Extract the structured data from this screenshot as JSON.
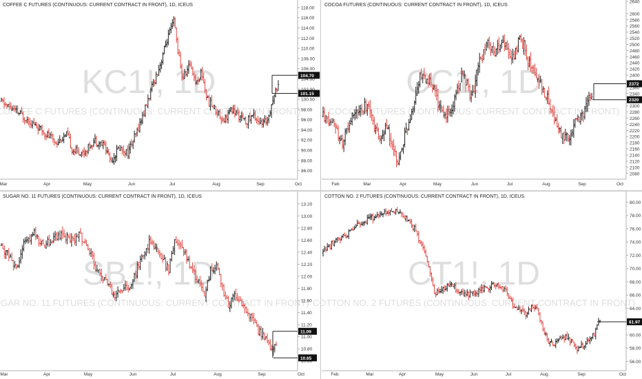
{
  "colors": {
    "up": "#1c1c1c",
    "down": "#e0403a",
    "grid": "#f0f0f0",
    "axis": "#b0b0b0",
    "watermark": "#dedede",
    "priceTag": "#111111"
  },
  "charts": [
    {
      "id": "kc",
      "title": "COFFEE C FUTURES (CONTINUOUS: CURRENT CONTRACT IN FRONT), 1D, ICEUS",
      "watermark": "KC1!, 1D",
      "watermark_sub": "COFFEE C FUTURES (CONTINUOUS: CURRENT CONTRACT IN FRONT)",
      "yticks": [
        "118.00",
        "116.00",
        "114.00",
        "112.00",
        "110.00",
        "108.00",
        "106.00",
        "104.00",
        "102.00",
        "100.00",
        "98.00",
        "96.00",
        "94.00",
        "92.00",
        "90.00",
        "88.00",
        "86.00"
      ],
      "yrange": [
        84.6,
        119.2
      ],
      "xticks": [
        "Mar",
        "Apr",
        "May",
        "Jun",
        "Jul",
        "Aug",
        "Sep",
        "Oct"
      ],
      "price_tags": [
        "104.70",
        "101.15"
      ],
      "start": 99.5,
      "end": 102.5,
      "path": [
        [
          0,
          99.5
        ],
        [
          14,
          97
        ],
        [
          24,
          95
        ],
        [
          34,
          93
        ],
        [
          40,
          91.5
        ],
        [
          48,
          93
        ],
        [
          52,
          90
        ],
        [
          60,
          89.5
        ],
        [
          68,
          92
        ],
        [
          75,
          91
        ],
        [
          80,
          88
        ],
        [
          86,
          90.5
        ],
        [
          92,
          89.5
        ],
        [
          98,
          93
        ],
        [
          106,
          99
        ],
        [
          112,
          104
        ],
        [
          116,
          107
        ],
        [
          120,
          111
        ],
        [
          124,
          114
        ],
        [
          126,
          115.5
        ],
        [
          128,
          111
        ],
        [
          132,
          104
        ],
        [
          138,
          107
        ],
        [
          142,
          103
        ],
        [
          146,
          105.5
        ],
        [
          150,
          100
        ],
        [
          156,
          98
        ],
        [
          162,
          96
        ],
        [
          168,
          98
        ],
        [
          172,
          97
        ],
        [
          178,
          95.5
        ],
        [
          184,
          97
        ],
        [
          190,
          95
        ],
        [
          194,
          96
        ],
        [
          198,
          100
        ],
        [
          202,
          103
        ]
      ],
      "vol": 1.0
    },
    {
      "id": "cc",
      "title": "COCOA FUTURES (CONTINUOUS: CURRENT CONTRACT IN FRONT), 1D, ICEUS",
      "watermark": "CC1!, 1D",
      "watermark_sub": "COCOA FUTURES (CONTINUOUS: CURRENT CONTRACT IN FRONT)",
      "yticks": [
        "2640",
        "2600",
        "2580",
        "2560",
        "2540",
        "2520",
        "2500",
        "2480",
        "2460",
        "2440",
        "2420",
        "2400",
        "2380",
        "2360",
        "2340",
        "2320",
        "2300",
        "2280",
        "2260",
        "2240",
        "2220",
        "2200",
        "2180",
        "2160",
        "2140",
        "2120",
        "2100",
        "2080"
      ],
      "yrange": [
        2066,
        2640
      ],
      "xticks": [
        "Feb",
        "Mar",
        "Apr",
        "May",
        "Jun",
        "Jul",
        "Aug",
        "Sep",
        "Oct"
      ],
      "price_tags": [
        "2372",
        "2320"
      ],
      "start": 2270,
      "end": 2335,
      "path": [
        [
          0,
          2270
        ],
        [
          8,
          2230
        ],
        [
          14,
          2180
        ],
        [
          20,
          2260
        ],
        [
          26,
          2290
        ],
        [
          32,
          2300
        ],
        [
          36,
          2250
        ],
        [
          40,
          2190
        ],
        [
          46,
          2230
        ],
        [
          50,
          2150
        ],
        [
          54,
          2120
        ],
        [
          58,
          2200
        ],
        [
          62,
          2260
        ],
        [
          66,
          2340
        ],
        [
          70,
          2400
        ],
        [
          76,
          2380
        ],
        [
          80,
          2340
        ],
        [
          86,
          2260
        ],
        [
          92,
          2290
        ],
        [
          96,
          2360
        ],
        [
          100,
          2400
        ],
        [
          106,
          2330
        ],
        [
          112,
          2440
        ],
        [
          118,
          2500
        ],
        [
          124,
          2470
        ],
        [
          128,
          2530
        ],
        [
          132,
          2480
        ],
        [
          136,
          2450
        ],
        [
          140,
          2520
        ],
        [
          144,
          2490
        ],
        [
          148,
          2430
        ],
        [
          152,
          2400
        ],
        [
          156,
          2360
        ],
        [
          160,
          2330
        ],
        [
          164,
          2270
        ],
        [
          168,
          2230
        ],
        [
          172,
          2190
        ],
        [
          176,
          2200
        ],
        [
          180,
          2240
        ],
        [
          184,
          2260
        ],
        [
          188,
          2300
        ],
        [
          192,
          2335
        ]
      ],
      "vol": 25
    },
    {
      "id": "sb",
      "title": "SUGAR NO. 11 FUTURES (CONTINUOUS: CURRENT CONTRACT IN FRONT), 1D, ICEUS",
      "watermark": "SB1!, 1D",
      "watermark_sub": "SUGAR NO. 11 FUTURES (CONTINUOUS: CURRENT CONTRACT IN FRONT)",
      "yticks": [
        "13.20",
        "13.00",
        "12.80",
        "12.60",
        "12.40",
        "12.20",
        "12.00",
        "11.80",
        "11.60",
        "11.40",
        "11.20",
        "11.00",
        "10.80",
        "10.60"
      ],
      "yrange": [
        10.46,
        13.38
      ],
      "xticks": [
        "Mar",
        "Apr",
        "May",
        "Jun",
        "Jul",
        "Aug",
        "Sep",
        "Oct"
      ],
      "price_tags": [
        "11.09",
        "10.65"
      ],
      "start": 12.5,
      "end": 10.95,
      "path": [
        [
          0,
          12.5
        ],
        [
          6,
          12.3
        ],
        [
          10,
          12.1
        ],
        [
          16,
          12.6
        ],
        [
          22,
          12.7
        ],
        [
          28,
          12.5
        ],
        [
          34,
          12.6
        ],
        [
          40,
          12.7
        ],
        [
          46,
          12.6
        ],
        [
          52,
          12.7
        ],
        [
          58,
          12.5
        ],
        [
          62,
          12.2
        ],
        [
          66,
          12.0
        ],
        [
          70,
          11.9
        ],
        [
          76,
          11.7
        ],
        [
          82,
          11.8
        ],
        [
          88,
          11.9
        ],
        [
          92,
          12.2
        ],
        [
          96,
          12.4
        ],
        [
          100,
          12.6
        ],
        [
          104,
          12.5
        ],
        [
          108,
          12.3
        ],
        [
          112,
          12.1
        ],
        [
          116,
          12.6
        ],
        [
          120,
          12.5
        ],
        [
          124,
          12.3
        ],
        [
          128,
          12.1
        ],
        [
          132,
          11.9
        ],
        [
          136,
          11.7
        ],
        [
          140,
          12.1
        ],
        [
          144,
          12.2
        ],
        [
          148,
          11.8
        ],
        [
          152,
          11.5
        ],
        [
          156,
          11.7
        ],
        [
          160,
          11.6
        ],
        [
          164,
          11.4
        ],
        [
          168,
          11.3
        ],
        [
          172,
          11.1
        ],
        [
          176,
          11.0
        ],
        [
          180,
          10.8
        ],
        [
          184,
          10.9
        ]
      ],
      "vol": 0.09
    },
    {
      "id": "ct",
      "title": "COTTON NO. 2 FUTURES (CONTINUOUS: CURRENT CONTRACT IN FRONT), 1D, ICEUS",
      "watermark": "CT1!, 1D",
      "watermark_sub": "COTTON NO. 2 FUTURES (CONTINUOUS: CURRENT CONTRACT IN FRONT)",
      "yticks": [
        "80.00",
        "78.00",
        "76.00",
        "74.00",
        "72.00",
        "70.00",
        "68.00",
        "66.00",
        "64.00",
        "62.00",
        "60.00",
        "58.00",
        "56.00"
      ],
      "yrange": [
        54.8,
        81.4
      ],
      "xticks": [
        "Feb",
        "Mar",
        "Apr",
        "May",
        "Jun",
        "Jul",
        "Aug",
        "Sep",
        "Oct"
      ],
      "price_tags": [
        "61.97"
      ],
      "start": 72.5,
      "end": 62.5,
      "path": [
        [
          0,
          72.5
        ],
        [
          8,
          74
        ],
        [
          16,
          75
        ],
        [
          24,
          76.5
        ],
        [
          32,
          77.5
        ],
        [
          40,
          78
        ],
        [
          46,
          78.5
        ],
        [
          52,
          78.5
        ],
        [
          58,
          77.5
        ],
        [
          64,
          76
        ],
        [
          70,
          73
        ],
        [
          74,
          70
        ],
        [
          78,
          66
        ],
        [
          84,
          67
        ],
        [
          90,
          67.5
        ],
        [
          96,
          66.5
        ],
        [
          102,
          66
        ],
        [
          108,
          66.5
        ],
        [
          114,
          67
        ],
        [
          120,
          67.5
        ],
        [
          126,
          67
        ],
        [
          130,
          66
        ],
        [
          134,
          64
        ],
        [
          138,
          64
        ],
        [
          142,
          63
        ],
        [
          146,
          64
        ],
        [
          150,
          64
        ],
        [
          154,
          61
        ],
        [
          158,
          59
        ],
        [
          162,
          58.5
        ],
        [
          166,
          59.5
        ],
        [
          170,
          59.5
        ],
        [
          174,
          59
        ],
        [
          178,
          58
        ],
        [
          182,
          58.5
        ],
        [
          186,
          59
        ],
        [
          190,
          60
        ],
        [
          194,
          62.5
        ]
      ],
      "vol": 0.6
    }
  ]
}
